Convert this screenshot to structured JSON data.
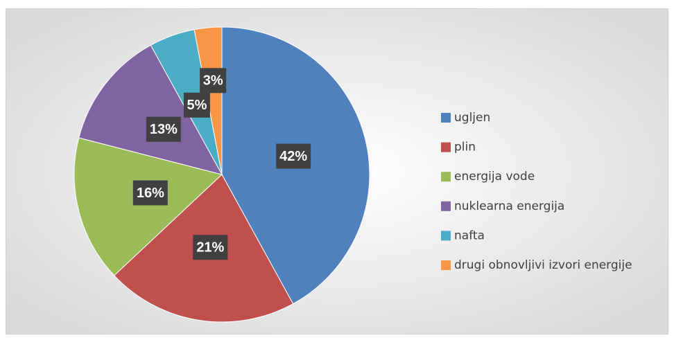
{
  "chart_data": {
    "type": "pie",
    "categories": [
      "ugljen",
      "plin",
      "energija vode",
      "nuklearna energija",
      "nafta",
      "drugi obnovljivi izvori energije"
    ],
    "values": [
      42,
      21,
      16,
      13,
      5,
      3
    ],
    "value_labels": [
      "42%",
      "21%",
      "16%",
      "13%",
      "5%",
      "3%"
    ],
    "colors": [
      "#4f81bd",
      "#c0504d",
      "#9bbb59",
      "#8064a2",
      "#4bacc6",
      "#f79646"
    ],
    "legend": "right"
  }
}
